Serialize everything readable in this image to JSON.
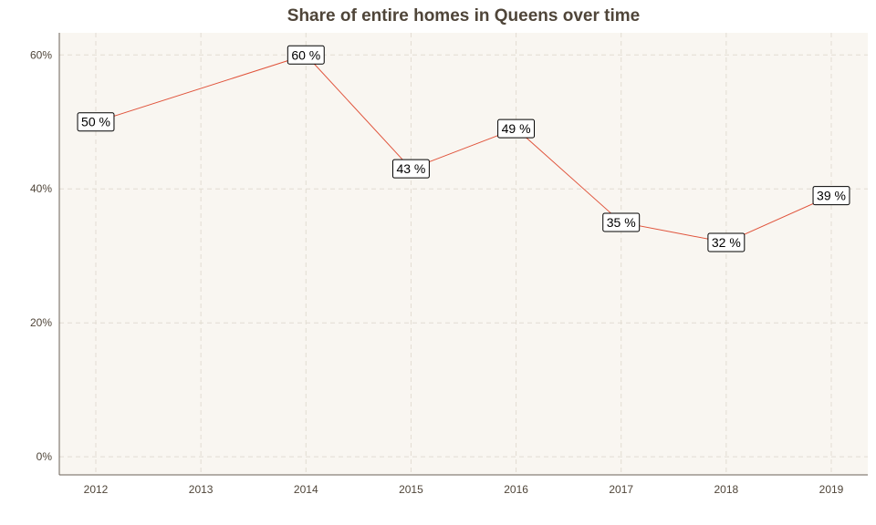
{
  "chart_data": {
    "type": "line",
    "title": "Share of entire homes in Queens over time",
    "xlabel": "",
    "ylabel": "",
    "x": [
      "2012",
      "2013",
      "2014",
      "2015",
      "2016",
      "2017",
      "2018",
      "2019"
    ],
    "series": [
      {
        "values": [
          {
            "x": "2012",
            "y": 50,
            "label": "50 %"
          },
          {
            "x": "2014",
            "y": 60,
            "label": "60 %"
          },
          {
            "x": "2015",
            "y": 43,
            "label": "43 %"
          },
          {
            "x": "2016",
            "y": 49,
            "label": "49 %"
          },
          {
            "x": "2017",
            "y": 35,
            "label": "35 %"
          },
          {
            "x": "2018",
            "y": 32,
            "label": "32 %"
          },
          {
            "x": "2019",
            "y": 39,
            "label": "39 %"
          }
        ]
      }
    ],
    "yticks": [
      {
        "value": 0,
        "label": "0%"
      },
      {
        "value": 20,
        "label": "20%"
      },
      {
        "value": 40,
        "label": "40%"
      },
      {
        "value": 60,
        "label": "60%"
      }
    ],
    "ylim": [
      -2.7,
      63.3
    ],
    "grid": true,
    "legend": "none",
    "colors": {
      "panel_background": "#f9f6f1",
      "line": "#e0533b",
      "grid": "#e2dcd2",
      "text": "#4f4539",
      "axis": "#6b6257"
    }
  }
}
